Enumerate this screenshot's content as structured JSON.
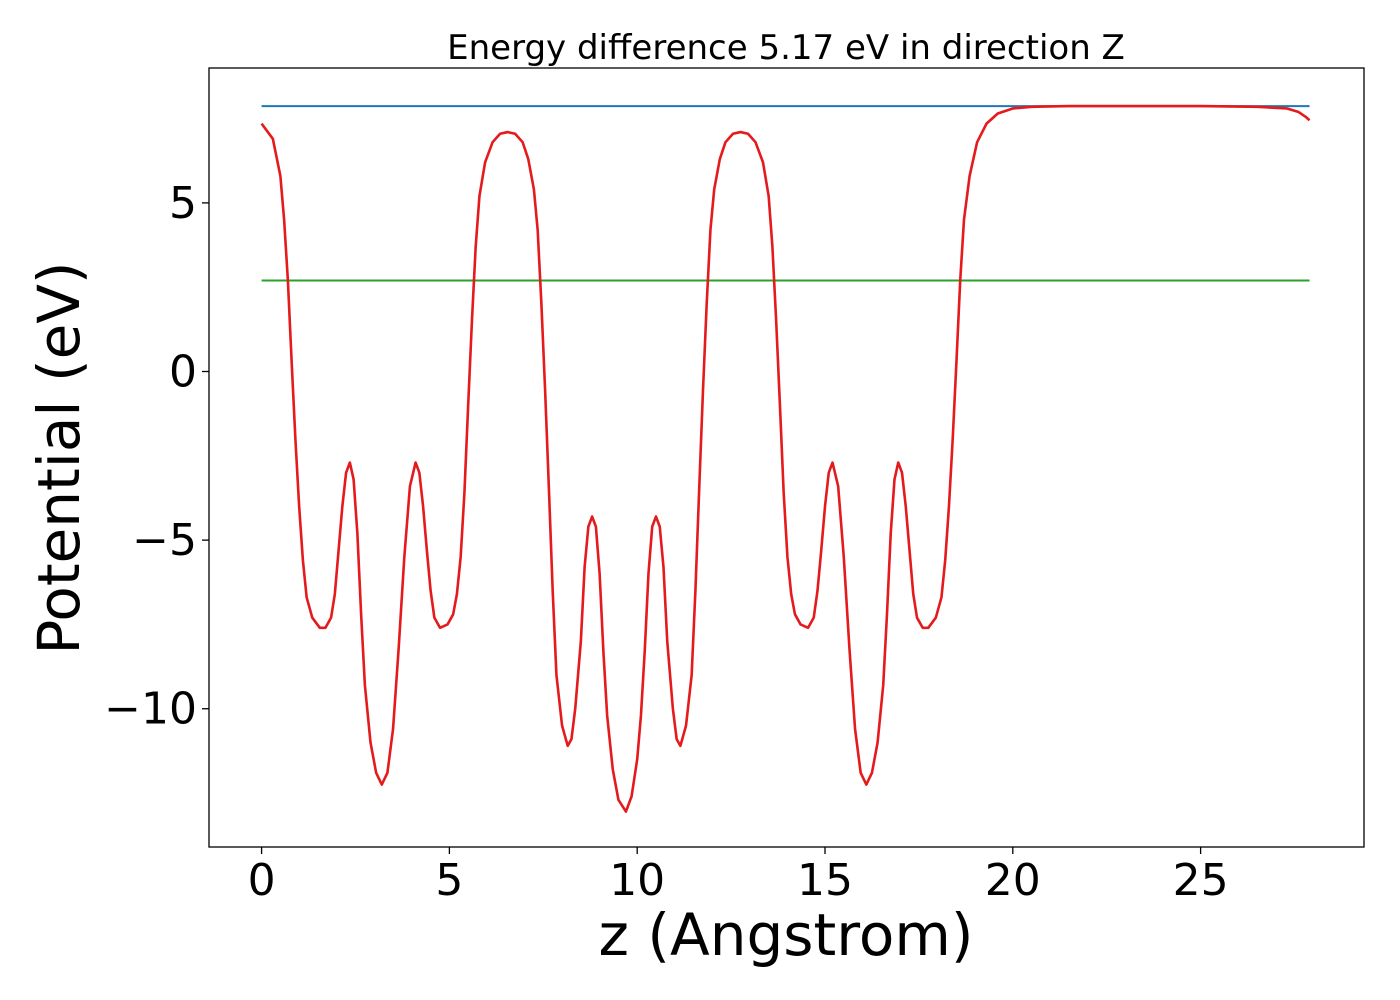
{
  "chart_data": {
    "type": "line",
    "title": "Energy difference 5.17 eV in direction Z",
    "xlabel": "z (Angstrom)",
    "ylabel": "Potential (eV)",
    "xlim": [
      -1.4,
      29.35
    ],
    "ylim": [
      -14.1,
      9.0
    ],
    "x_ticks": [
      0,
      5,
      10,
      15,
      20,
      25
    ],
    "y_ticks": [
      -10,
      -5,
      0,
      5
    ],
    "x_tick_labels": [
      "0",
      "5",
      "10",
      "15",
      "20",
      "25"
    ],
    "y_tick_labels": [
      "−10",
      "−5",
      "0",
      "5"
    ],
    "grid": false,
    "legend": "none",
    "series": [
      {
        "color": "#1f77b4",
        "points": [
          [
            0,
            7.87
          ],
          [
            27.9,
            7.87
          ]
        ]
      },
      {
        "color": "#2ca02c",
        "points": [
          [
            0,
            2.7
          ],
          [
            27.9,
            2.7
          ]
        ]
      },
      {
        "color": "#e41a1c",
        "points": [
          [
            0,
            7.35
          ],
          [
            0.3,
            6.9
          ],
          [
            0.5,
            5.8
          ],
          [
            0.6,
            4.5
          ],
          [
            0.7,
            2.7
          ],
          [
            0.8,
            0.3
          ],
          [
            0.9,
            -2.0
          ],
          [
            1.0,
            -4.0
          ],
          [
            1.1,
            -5.6
          ],
          [
            1.2,
            -6.7
          ],
          [
            1.35,
            -7.3
          ],
          [
            1.55,
            -7.6
          ],
          [
            1.7,
            -7.6
          ],
          [
            1.85,
            -7.3
          ],
          [
            1.95,
            -6.6
          ],
          [
            2.05,
            -5.3
          ],
          [
            2.15,
            -4.0
          ],
          [
            2.25,
            -3.0
          ],
          [
            2.35,
            -2.7
          ],
          [
            2.45,
            -3.2
          ],
          [
            2.55,
            -4.8
          ],
          [
            2.65,
            -7.2
          ],
          [
            2.75,
            -9.3
          ],
          [
            2.9,
            -11.0
          ],
          [
            3.05,
            -11.9
          ],
          [
            3.2,
            -12.25
          ],
          [
            3.35,
            -11.9
          ],
          [
            3.5,
            -10.6
          ],
          [
            3.65,
            -8.2
          ],
          [
            3.8,
            -5.5
          ],
          [
            3.95,
            -3.4
          ],
          [
            4.1,
            -2.7
          ],
          [
            4.2,
            -3.0
          ],
          [
            4.3,
            -4.0
          ],
          [
            4.4,
            -5.3
          ],
          [
            4.5,
            -6.5
          ],
          [
            4.6,
            -7.3
          ],
          [
            4.75,
            -7.6
          ],
          [
            4.95,
            -7.5
          ],
          [
            5.1,
            -7.2
          ],
          [
            5.2,
            -6.6
          ],
          [
            5.3,
            -5.5
          ],
          [
            5.4,
            -3.6
          ],
          [
            5.5,
            -1.0
          ],
          [
            5.6,
            1.5
          ],
          [
            5.7,
            3.7
          ],
          [
            5.8,
            5.2
          ],
          [
            5.95,
            6.2
          ],
          [
            6.15,
            6.8
          ],
          [
            6.35,
            7.05
          ],
          [
            6.55,
            7.1
          ],
          [
            6.75,
            7.05
          ],
          [
            6.95,
            6.8
          ],
          [
            7.1,
            6.3
          ],
          [
            7.25,
            5.4
          ],
          [
            7.35,
            4.2
          ],
          [
            7.45,
            2.0
          ],
          [
            7.55,
            -0.6
          ],
          [
            7.65,
            -3.5
          ],
          [
            7.75,
            -6.5
          ],
          [
            7.85,
            -9.0
          ],
          [
            8.0,
            -10.5
          ],
          [
            8.15,
            -11.1
          ],
          [
            8.25,
            -10.9
          ],
          [
            8.35,
            -10.0
          ],
          [
            8.5,
            -8.0
          ],
          [
            8.6,
            -5.8
          ],
          [
            8.7,
            -4.6
          ],
          [
            8.8,
            -4.3
          ],
          [
            8.9,
            -4.6
          ],
          [
            9.0,
            -6.0
          ],
          [
            9.1,
            -8.3
          ],
          [
            9.2,
            -10.2
          ],
          [
            9.35,
            -11.8
          ],
          [
            9.5,
            -12.7
          ],
          [
            9.7,
            -13.05
          ],
          [
            9.85,
            -12.6
          ],
          [
            10.0,
            -11.5
          ],
          [
            10.1,
            -10.2
          ],
          [
            10.2,
            -8.3
          ],
          [
            10.3,
            -6.0
          ],
          [
            10.4,
            -4.6
          ],
          [
            10.5,
            -4.3
          ],
          [
            10.6,
            -4.6
          ],
          [
            10.7,
            -5.8
          ],
          [
            10.8,
            -8.0
          ],
          [
            10.95,
            -10.0
          ],
          [
            11.05,
            -10.9
          ],
          [
            11.15,
            -11.1
          ],
          [
            11.3,
            -10.5
          ],
          [
            11.45,
            -9.0
          ],
          [
            11.55,
            -6.5
          ],
          [
            11.65,
            -3.5
          ],
          [
            11.75,
            -0.6
          ],
          [
            11.85,
            2.0
          ],
          [
            11.95,
            4.2
          ],
          [
            12.05,
            5.4
          ],
          [
            12.2,
            6.3
          ],
          [
            12.35,
            6.8
          ],
          [
            12.55,
            7.05
          ],
          [
            12.75,
            7.1
          ],
          [
            12.95,
            7.05
          ],
          [
            13.15,
            6.8
          ],
          [
            13.35,
            6.2
          ],
          [
            13.5,
            5.2
          ],
          [
            13.6,
            3.7
          ],
          [
            13.7,
            1.5
          ],
          [
            13.8,
            -1.0
          ],
          [
            13.9,
            -3.6
          ],
          [
            14.0,
            -5.5
          ],
          [
            14.1,
            -6.6
          ],
          [
            14.2,
            -7.2
          ],
          [
            14.35,
            -7.5
          ],
          [
            14.55,
            -7.6
          ],
          [
            14.7,
            -7.3
          ],
          [
            14.8,
            -6.5
          ],
          [
            14.9,
            -5.3
          ],
          [
            15.0,
            -4.0
          ],
          [
            15.1,
            -3.0
          ],
          [
            15.2,
            -2.7
          ],
          [
            15.35,
            -3.4
          ],
          [
            15.5,
            -5.5
          ],
          [
            15.65,
            -8.2
          ],
          [
            15.8,
            -10.6
          ],
          [
            15.95,
            -11.9
          ],
          [
            16.1,
            -12.25
          ],
          [
            16.25,
            -11.9
          ],
          [
            16.4,
            -11.0
          ],
          [
            16.55,
            -9.3
          ],
          [
            16.65,
            -7.2
          ],
          [
            16.75,
            -4.8
          ],
          [
            16.85,
            -3.2
          ],
          [
            16.95,
            -2.7
          ],
          [
            17.05,
            -3.0
          ],
          [
            17.15,
            -4.0
          ],
          [
            17.25,
            -5.3
          ],
          [
            17.35,
            -6.6
          ],
          [
            17.45,
            -7.3
          ],
          [
            17.6,
            -7.6
          ],
          [
            17.75,
            -7.6
          ],
          [
            17.95,
            -7.3
          ],
          [
            18.1,
            -6.7
          ],
          [
            18.2,
            -5.6
          ],
          [
            18.3,
            -4.0
          ],
          [
            18.4,
            -2.0
          ],
          [
            18.5,
            0.3
          ],
          [
            18.6,
            2.7
          ],
          [
            18.7,
            4.5
          ],
          [
            18.85,
            5.8
          ],
          [
            19.05,
            6.8
          ],
          [
            19.3,
            7.35
          ],
          [
            19.6,
            7.65
          ],
          [
            20.0,
            7.8
          ],
          [
            20.5,
            7.85
          ],
          [
            21.5,
            7.87
          ],
          [
            25.0,
            7.87
          ],
          [
            26.5,
            7.85
          ],
          [
            27.3,
            7.8
          ],
          [
            27.6,
            7.7
          ],
          [
            27.8,
            7.55
          ],
          [
            27.9,
            7.45
          ]
        ]
      }
    ]
  }
}
